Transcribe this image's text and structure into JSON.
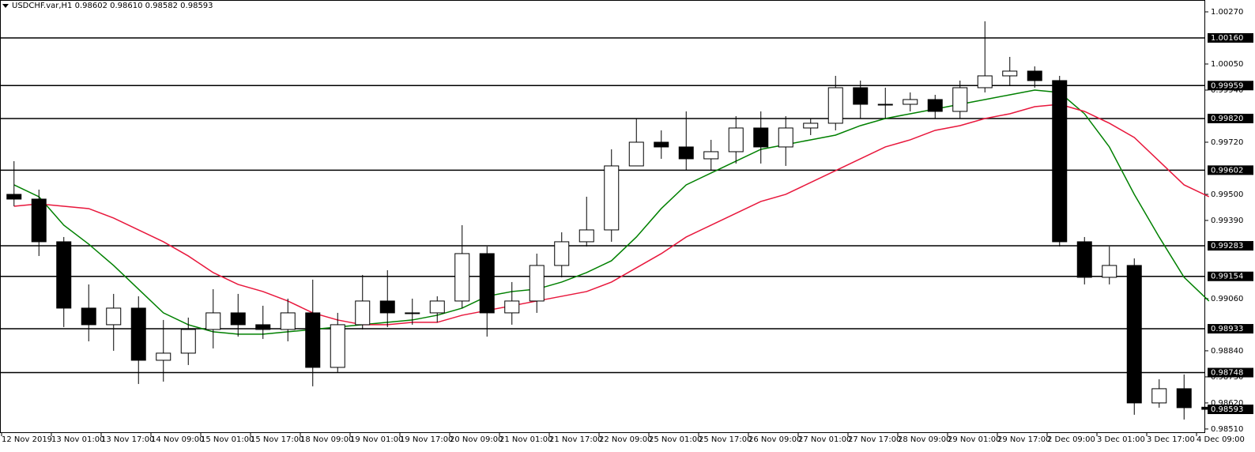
{
  "chart_data": {
    "type": "candlestick",
    "title": "USDCHF.var,H1  0.98602 0.98610 0.98582 0.98593",
    "categories": [
      "12 Nov 2019",
      null,
      "13 Nov 01:00",
      null,
      "13 Nov 17:00",
      null,
      "14 Nov 09:00",
      null,
      "15 Nov 01:00",
      null,
      "15 Nov 17:00",
      null,
      "18 Nov 09:00",
      null,
      "19 Nov 01:00",
      null,
      "19 Nov 17:00",
      null,
      "20 Nov 09:00",
      null,
      "21 Nov 01:00",
      null,
      "21 Nov 17:00",
      null,
      "22 Nov 09:00",
      null,
      "25 Nov 01:00",
      null,
      "25 Nov 17:00",
      null,
      "26 Nov 09:00",
      null,
      "27 Nov 01:00",
      null,
      "27 Nov 17:00",
      null,
      "28 Nov 09:00",
      null,
      "29 Nov 01:00",
      null,
      "29 Nov 17:00",
      null,
      "2 Dec 09:00",
      null,
      "3 Dec 01:00",
      null,
      "3 Dec 17:00",
      null,
      "4 Dec 09:00"
    ],
    "open": [
      0.995,
      0.9948,
      0.993,
      0.9902,
      0.9895,
      0.9902,
      0.988,
      0.9883,
      0.9893,
      0.99,
      0.9895,
      0.9893,
      0.99,
      0.9877,
      0.9895,
      0.9905,
      0.99,
      0.99,
      0.9905,
      0.9925,
      0.99,
      0.9905,
      0.992,
      0.993,
      0.9935,
      0.9962,
      0.9972,
      0.997,
      0.9965,
      0.9968,
      0.9978,
      0.997,
      0.9978,
      0.998,
      0.9995,
      0.9988,
      0.9988,
      0.999,
      0.9985,
      0.9995,
      1.0,
      1.0002,
      0.9998,
      0.993,
      0.9915,
      0.992,
      0.9862,
      0.9868,
      0.98602
    ],
    "high": [
      0.9964,
      0.9952,
      0.9932,
      0.9912,
      0.9908,
      0.9907,
      0.9897,
      0.9898,
      0.991,
      0.9908,
      0.9903,
      0.9906,
      0.9914,
      0.99,
      0.9916,
      0.9918,
      0.9906,
      0.9907,
      0.9937,
      0.9928,
      0.9913,
      0.9925,
      0.9934,
      0.9949,
      0.9969,
      0.9982,
      0.9977,
      0.9985,
      0.9973,
      0.9983,
      0.9985,
      0.9983,
      0.9982,
      1.0,
      0.9998,
      0.9995,
      0.9993,
      0.9992,
      0.9998,
      1.0023,
      1.0008,
      1.0004,
      1.0,
      0.9932,
      0.9928,
      0.9923,
      0.9872,
      0.9874,
      0.9861
    ],
    "low": [
      0.9945,
      0.9924,
      0.9894,
      0.9888,
      0.9884,
      0.987,
      0.9871,
      0.9878,
      0.9885,
      0.989,
      0.9889,
      0.9888,
      0.9869,
      0.9875,
      0.9893,
      0.9894,
      0.9895,
      0.9896,
      0.9902,
      0.989,
      0.9895,
      0.99,
      0.9915,
      0.9928,
      0.993,
      0.9962,
      0.9965,
      0.996,
      0.996,
      0.9963,
      0.9963,
      0.9962,
      0.9975,
      0.9977,
      0.9982,
      0.9982,
      0.9985,
      0.9982,
      0.9982,
      0.9993,
      0.9996,
      0.9995,
      0.9928,
      0.9912,
      0.9912,
      0.9857,
      0.986,
      0.9855,
      0.98582
    ],
    "close": [
      0.9948,
      0.993,
      0.9902,
      0.9895,
      0.9902,
      0.988,
      0.9883,
      0.9893,
      0.99,
      0.9895,
      0.9893,
      0.99,
      0.9877,
      0.9895,
      0.9905,
      0.99,
      0.99,
      0.9905,
      0.9925,
      0.99,
      0.9905,
      0.992,
      0.993,
      0.9935,
      0.9962,
      0.9972,
      0.997,
      0.9965,
      0.9968,
      0.9978,
      0.997,
      0.9978,
      0.998,
      0.9995,
      0.9988,
      0.9988,
      0.999,
      0.9985,
      0.9995,
      1.0,
      1.0002,
      0.9998,
      0.993,
      0.9915,
      0.992,
      0.9862,
      0.9868,
      0.986,
      0.98593
    ],
    "bull_color": "#ffffff",
    "bear_color": "#000000",
    "series": [
      {
        "color": "#008000",
        "values": [
          0.9954,
          0.9949,
          0.9937,
          0.9929,
          0.992,
          0.991,
          0.99,
          0.9895,
          0.9892,
          0.9891,
          0.9891,
          0.9892,
          0.9893,
          0.9894,
          0.9895,
          0.9896,
          0.9897,
          0.9899,
          0.9902,
          0.9907,
          0.9909,
          0.991,
          0.9913,
          0.9917,
          0.9922,
          0.9932,
          0.9944,
          0.9954,
          0.9959,
          0.9964,
          0.9969,
          0.9971,
          0.9973,
          0.9975,
          0.9979,
          0.9982,
          0.9984,
          0.9986,
          0.9988,
          0.999,
          0.9992,
          0.9994,
          0.9993,
          0.9984,
          0.997,
          0.995,
          0.9932,
          0.9915,
          0.9905
        ]
      },
      {
        "color": "#e8173c",
        "values": [
          0.9945,
          0.9946,
          0.9945,
          0.9944,
          0.994,
          0.9935,
          0.993,
          0.9924,
          0.9917,
          0.9912,
          0.9909,
          0.9905,
          0.99,
          0.9897,
          0.9895,
          0.9895,
          0.9896,
          0.9896,
          0.9899,
          0.9901,
          0.9903,
          0.9905,
          0.9907,
          0.9909,
          0.9913,
          0.9919,
          0.9925,
          0.9932,
          0.9937,
          0.9942,
          0.9947,
          0.995,
          0.9955,
          0.996,
          0.9965,
          0.997,
          0.9973,
          0.9977,
          0.9979,
          0.9982,
          0.9984,
          0.9987,
          0.9988,
          0.9985,
          0.998,
          0.9974,
          0.9964,
          0.9954,
          0.9949
        ]
      }
    ],
    "levels": [
      {
        "value": 1.0016,
        "label": "1.00160"
      },
      {
        "value": 0.99959,
        "label": "0.99959"
      },
      {
        "value": 0.9982,
        "label": "0.99820"
      },
      {
        "value": 0.99602,
        "label": "0.99602"
      },
      {
        "value": 0.99283,
        "label": "0.99283"
      },
      {
        "value": 0.99154,
        "label": "0.99154"
      },
      {
        "value": 0.98933,
        "label": "0.98933"
      },
      {
        "value": 0.98748,
        "label": "0.98748"
      }
    ],
    "last": {
      "value": 0.98593,
      "label": "0.98593"
    },
    "ylim": [
      0.98493,
      1.0032
    ],
    "yticks": [
      {
        "value": 1.0027,
        "label": "1.00270"
      },
      {
        "value": 1.0005,
        "label": "1.00050"
      },
      {
        "value": 0.9994,
        "label": "0.99940"
      },
      {
        "value": 0.9972,
        "label": "0.99720"
      },
      {
        "value": 0.995,
        "label": "0.99500"
      },
      {
        "value": 0.9939,
        "label": "0.99390"
      },
      {
        "value": 0.9906,
        "label": "0.99060"
      },
      {
        "value": 0.9884,
        "label": "0.98840"
      },
      {
        "value": 0.9873,
        "label": "0.98730"
      },
      {
        "value": 0.9862,
        "label": "0.98620"
      },
      {
        "value": 0.9851,
        "label": "0.98510"
      }
    ]
  }
}
